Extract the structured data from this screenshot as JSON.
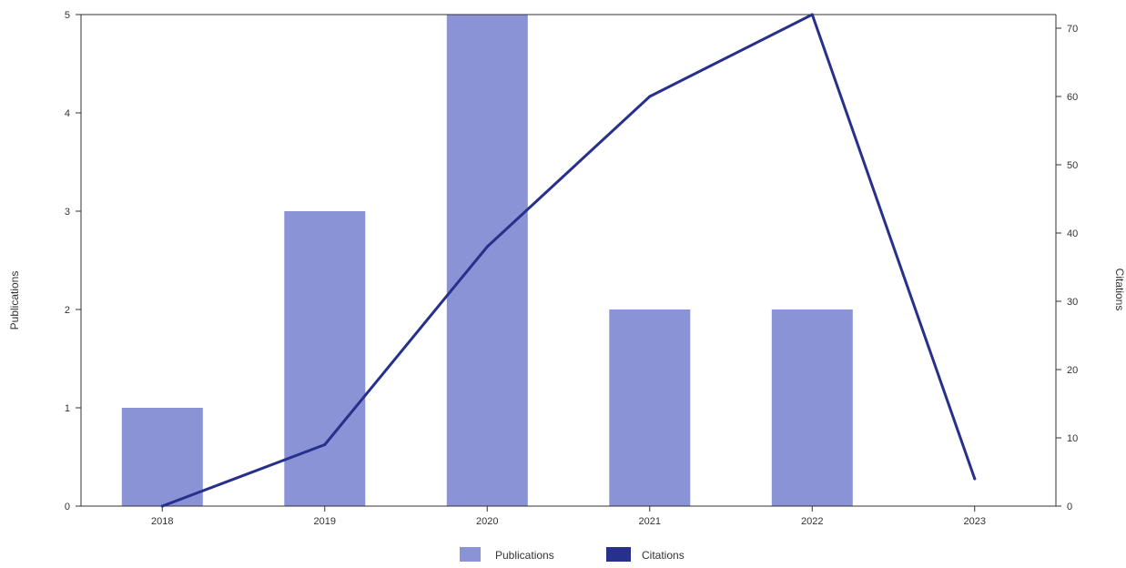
{
  "chart_data": {
    "type": "bar",
    "categories": [
      "2018",
      "2019",
      "2020",
      "2021",
      "2022",
      "2023"
    ],
    "series": [
      {
        "name": "Publications",
        "type": "bar",
        "axis": "left",
        "color": "#8a93d6",
        "values": [
          1,
          3,
          5,
          2,
          2,
          0
        ]
      },
      {
        "name": "Citations",
        "type": "line",
        "axis": "right",
        "color": "#27308a",
        "values": [
          0,
          9,
          38,
          60,
          72,
          4
        ]
      }
    ],
    "y_left": {
      "label": "Publications",
      "ylim": [
        0,
        5
      ],
      "ticks": [
        "0",
        "1",
        "2",
        "3",
        "4",
        "5"
      ]
    },
    "y_right": {
      "label": "Citations",
      "ylim": [
        0,
        72
      ],
      "ticks": [
        "0",
        "10",
        "20",
        "30",
        "40",
        "50",
        "60",
        "70"
      ]
    },
    "legend": {
      "placement": "bottom-center",
      "items": [
        "Publications",
        "Citations"
      ]
    },
    "grid": false
  }
}
